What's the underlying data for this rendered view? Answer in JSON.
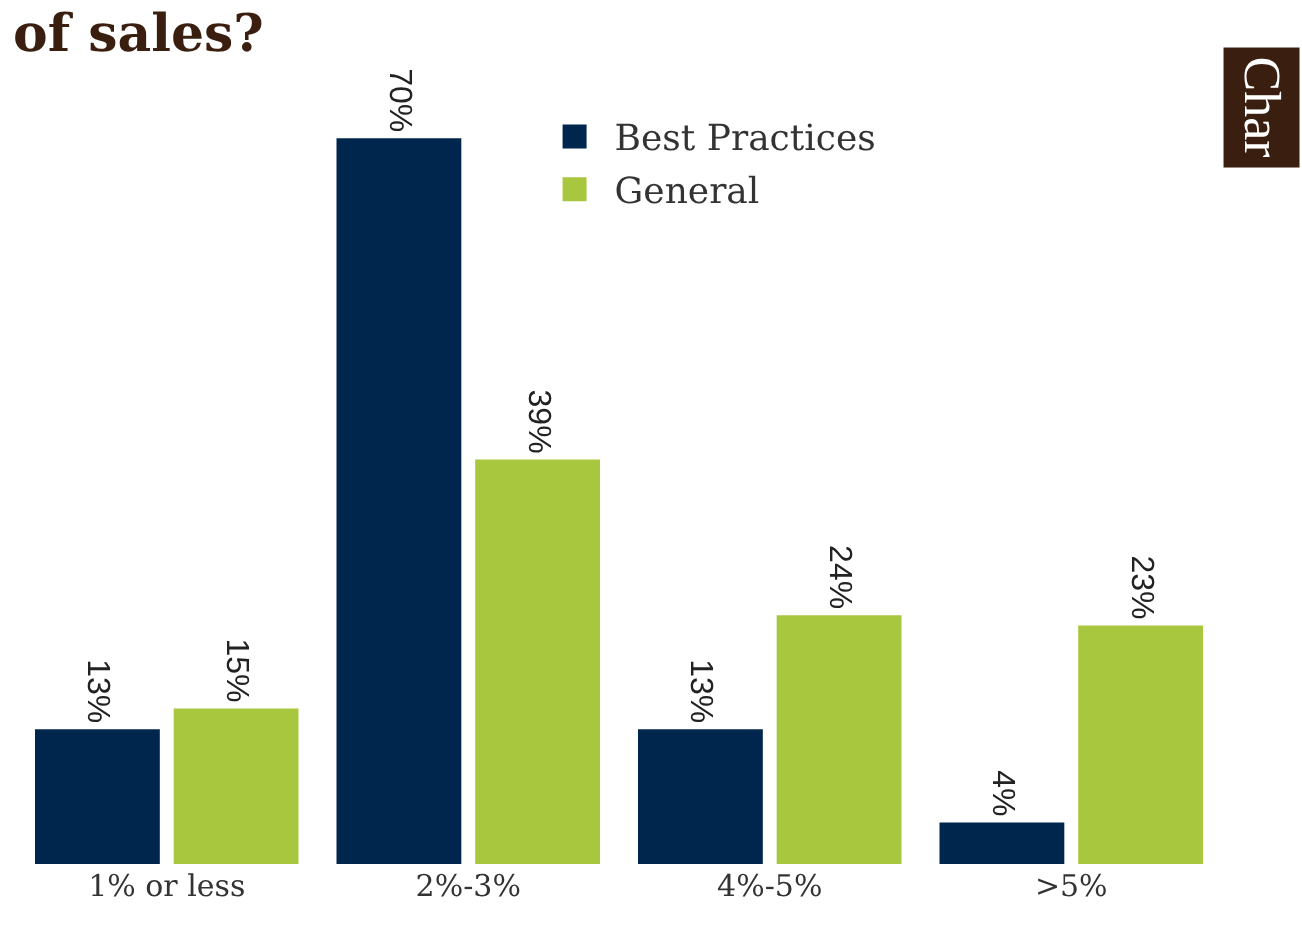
{
  "chart_data": {
    "type": "bar",
    "title": "of sales?",
    "annotations": [
      "Char"
    ],
    "categories": [
      "1% or less",
      "2%-3%",
      "4%-5%",
      ">5%"
    ],
    "series": [
      {
        "name": "Best Practices",
        "color": "#00264d",
        "values": [
          13,
          70,
          13,
          4
        ],
        "value_labels": [
          "13%",
          "70%",
          "13%",
          "4%"
        ]
      },
      {
        "name": "General",
        "color": "#a9c73e",
        "values": [
          15,
          39,
          24,
          23
        ],
        "value_labels": [
          "15%",
          "39%",
          "24%",
          "23%"
        ]
      }
    ],
    "legend": "top"
  }
}
